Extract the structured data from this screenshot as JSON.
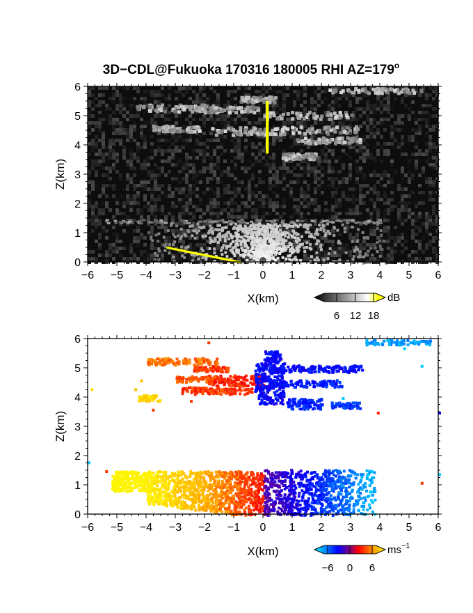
{
  "chart_data": [
    {
      "type": "heatmap",
      "title": "3D−CDL@Fukuoka 170316 180005 RHI AZ=179",
      "title_sup": "o",
      "xlabel": "X(km)",
      "ylabel": "Z(km)",
      "xlim": [
        -6,
        6
      ],
      "ylim": [
        0,
        6
      ],
      "xticks": [
        "−6",
        "−5",
        "−4",
        "−3",
        "−2",
        "−1",
        "0",
        "1",
        "2",
        "3",
        "4",
        "5",
        "6"
      ],
      "yticks": [
        "0",
        "1",
        "2",
        "3",
        "4",
        "5",
        "6"
      ],
      "colorbar": {
        "unit": "dB",
        "ticks": [
          "6",
          "12",
          "18"
        ],
        "range": [
          0,
          20
        ],
        "colors": [
          "#000000",
          "#ffffff",
          "#ffff00"
        ]
      },
      "layers": [
        {
          "name": "boundary layer echo",
          "z_range": [
            0,
            1.4
          ],
          "value": 10
        },
        {
          "name": "cloud layer echo",
          "z_range": [
            3.6,
            5.6
          ],
          "value": 11
        }
      ]
    },
    {
      "type": "heatmap",
      "xlabel": "X(km)",
      "ylabel": "Z(km)",
      "xlim": [
        -6,
        6
      ],
      "ylim": [
        0,
        6
      ],
      "xticks": [
        "−6",
        "−5",
        "−4",
        "−3",
        "−2",
        "−1",
        "0",
        "1",
        "2",
        "3",
        "4",
        "5",
        "6"
      ],
      "yticks": [
        "0",
        "1",
        "2",
        "3",
        "4",
        "5",
        "6"
      ],
      "colorbar": {
        "unit": "ms",
        "unit_sup": "−1",
        "ticks": [
          "−6",
          "0",
          "6"
        ],
        "range": [
          -8,
          8
        ],
        "colors": [
          "#00ffff",
          "#0000ff",
          "#ff0000",
          "#ffff00"
        ]
      },
      "layers": [
        {
          "name": "boundary layer velocity",
          "z_range": [
            0,
            1.6
          ],
          "x_range": [
            -5.5,
            3.8
          ]
        },
        {
          "name": "cloud layer velocity",
          "z_range": [
            3.4,
            6.0
          ],
          "x_range": [
            -4.5,
            6.0
          ]
        }
      ]
    }
  ]
}
